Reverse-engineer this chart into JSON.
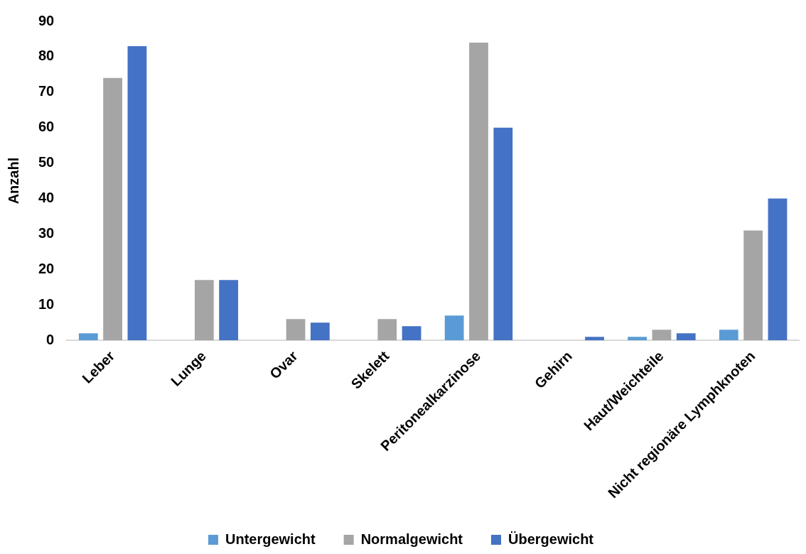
{
  "chart_data": {
    "type": "bar",
    "ylabel": "Anzahl",
    "categories": [
      "Leber",
      "Lunge",
      "Ovar",
      "Skelett",
      "Peritonealkarzinose",
      "Gehirn",
      "Haut/Weichteile",
      "Nicht regionäre Lymphknoten"
    ],
    "series": [
      {
        "name": "Untergewicht",
        "color": "#5b9bd5",
        "values": [
          2,
          0,
          0,
          0,
          7,
          0,
          1,
          3
        ]
      },
      {
        "name": "Normalgewicht",
        "color": "#a5a5a5",
        "values": [
          74,
          17,
          6,
          6,
          84,
          0,
          3,
          31
        ]
      },
      {
        "name": "Übergewicht",
        "color": "#4472c4",
        "values": [
          83,
          17,
          5,
          4,
          60,
          1,
          2,
          40
        ]
      }
    ],
    "ylim": [
      0,
      90
    ],
    "yticks": [
      0,
      10,
      20,
      30,
      40,
      50,
      60,
      70,
      80,
      90
    ],
    "grid": false,
    "legend": "bottom"
  }
}
